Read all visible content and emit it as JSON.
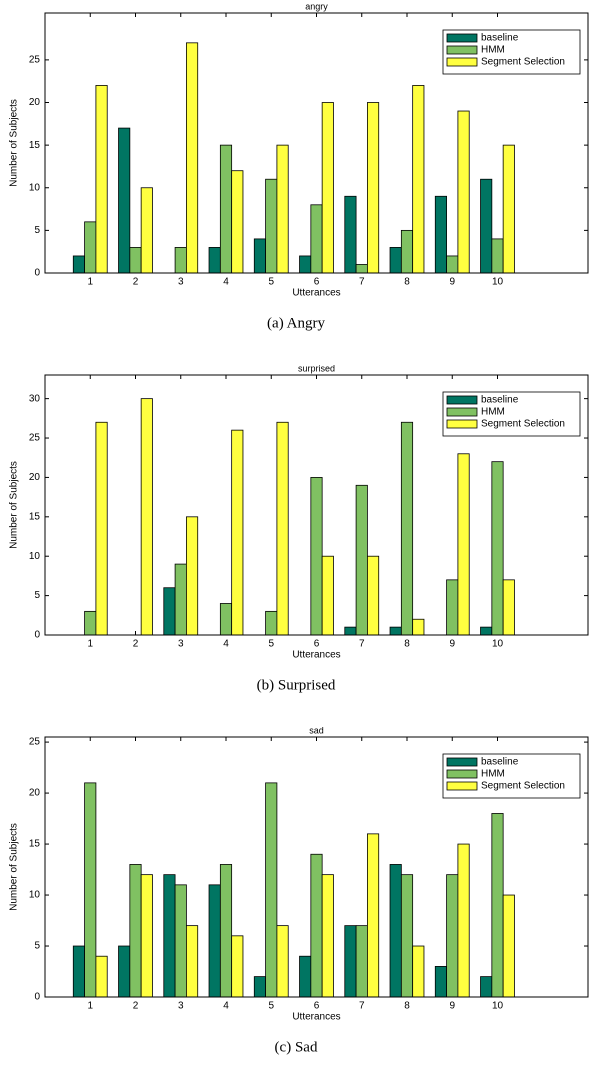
{
  "chart_data": [
    {
      "type": "bar",
      "title": "angry",
      "xlabel": "Utterances",
      "ylabel": "Number of Subjects",
      "caption": "(a) Angry",
      "x": [
        1,
        2,
        3,
        4,
        5,
        6,
        7,
        8,
        9,
        10
      ],
      "xlim": [
        0,
        12
      ],
      "xticks": [
        1,
        2,
        3,
        4,
        5,
        6,
        7,
        8,
        9,
        10
      ],
      "ylim": [
        0,
        30.5
      ],
      "yticks": [
        0,
        5,
        10,
        15,
        20,
        25
      ],
      "legend": "upper right",
      "series": [
        {
          "name": "baseline",
          "color": "#007562",
          "values": [
            2,
            17,
            0,
            3,
            4,
            2,
            9,
            3,
            9,
            11
          ]
        },
        {
          "name": "HMM",
          "color": "#80c162",
          "values": [
            6,
            3,
            3,
            15,
            11,
            8,
            1,
            5,
            2,
            4
          ]
        },
        {
          "name": "Segment Selection",
          "color": "#ffff40",
          "values": [
            22,
            10,
            27,
            12,
            15,
            20,
            20,
            22,
            19,
            15
          ]
        }
      ]
    },
    {
      "type": "bar",
      "title": "surprised",
      "xlabel": "Utterances",
      "ylabel": "Number of Subjects",
      "caption": "(b) Surprised",
      "x": [
        1,
        2,
        3,
        4,
        5,
        6,
        7,
        8,
        9,
        10
      ],
      "xlim": [
        0,
        12
      ],
      "xticks": [
        1,
        2,
        3,
        4,
        5,
        6,
        7,
        8,
        9,
        10
      ],
      "ylim": [
        0,
        33
      ],
      "yticks": [
        0,
        5,
        10,
        15,
        20,
        25,
        30
      ],
      "legend": "upper right",
      "series": [
        {
          "name": "baseline",
          "color": "#007562",
          "values": [
            0,
            0,
            6,
            0,
            0,
            0,
            1,
            1,
            0,
            1
          ]
        },
        {
          "name": "HMM",
          "color": "#80c162",
          "values": [
            3,
            0,
            9,
            4,
            3,
            20,
            19,
            27,
            7,
            22
          ]
        },
        {
          "name": "Segment Selection",
          "color": "#ffff40",
          "values": [
            27,
            30,
            15,
            26,
            27,
            10,
            10,
            2,
            23,
            7
          ]
        }
      ]
    },
    {
      "type": "bar",
      "title": "sad",
      "xlabel": "Utterances",
      "ylabel": "Number of Subjects",
      "caption": "(c) Sad",
      "x": [
        1,
        2,
        3,
        4,
        5,
        6,
        7,
        8,
        9,
        10
      ],
      "xlim": [
        0,
        12
      ],
      "xticks": [
        1,
        2,
        3,
        4,
        5,
        6,
        7,
        8,
        9,
        10
      ],
      "ylim": [
        0,
        25.5
      ],
      "yticks": [
        0,
        5,
        10,
        15,
        20,
        25
      ],
      "legend": "upper right",
      "series": [
        {
          "name": "baseline",
          "color": "#007562",
          "values": [
            5,
            5,
            12,
            11,
            2,
            4,
            7,
            13,
            3,
            2
          ]
        },
        {
          "name": "HMM",
          "color": "#80c162",
          "values": [
            21,
            13,
            11,
            13,
            21,
            14,
            7,
            12,
            12,
            18
          ]
        },
        {
          "name": "Segment Selection",
          "color": "#ffff40",
          "values": [
            4,
            12,
            7,
            6,
            7,
            12,
            16,
            5,
            15,
            10
          ]
        }
      ]
    }
  ]
}
